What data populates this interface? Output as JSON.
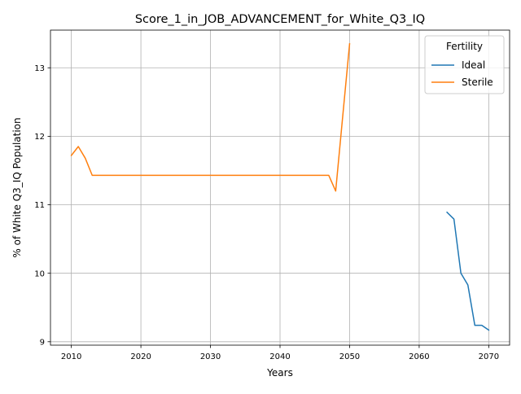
{
  "chart_data": {
    "type": "line",
    "title": "Score_1_in_JOB_ADVANCEMENT_for_White_Q3_IQ",
    "xlabel": "Years",
    "ylabel": "% of White Q3_IQ Population",
    "xlim": [
      2007,
      2073
    ],
    "ylim": [
      8.95,
      13.55
    ],
    "x_ticks": [
      2010,
      2020,
      2030,
      2040,
      2050,
      2060,
      2070
    ],
    "y_ticks": [
      9,
      10,
      11,
      12,
      13
    ],
    "grid": true,
    "legend": {
      "title": "Fertility",
      "placement": "top-right"
    },
    "series": [
      {
        "name": "Ideal",
        "color": "#1f77b4",
        "x": [
          2064,
          2065,
          2066,
          2067,
          2068,
          2069,
          2070
        ],
        "y": [
          10.89,
          10.79,
          10.0,
          9.83,
          9.24,
          9.24,
          9.17
        ]
      },
      {
        "name": "Sterile",
        "color": "#ff7f0e",
        "x": [
          2010,
          2011,
          2012,
          2013,
          2014,
          2015,
          2016,
          2017,
          2018,
          2019,
          2020,
          2021,
          2022,
          2023,
          2024,
          2025,
          2026,
          2027,
          2028,
          2029,
          2030,
          2031,
          2032,
          2033,
          2034,
          2035,
          2036,
          2037,
          2038,
          2039,
          2040,
          2041,
          2042,
          2043,
          2044,
          2045,
          2046,
          2047,
          2048,
          2049,
          2050
        ],
        "y": [
          11.72,
          11.85,
          11.68,
          11.43,
          11.43,
          11.43,
          11.43,
          11.43,
          11.43,
          11.43,
          11.43,
          11.43,
          11.43,
          11.43,
          11.43,
          11.43,
          11.43,
          11.43,
          11.43,
          11.43,
          11.43,
          11.43,
          11.43,
          11.43,
          11.43,
          11.43,
          11.43,
          11.43,
          11.43,
          11.43,
          11.43,
          11.43,
          11.43,
          11.43,
          11.43,
          11.43,
          11.43,
          11.43,
          11.2,
          12.28,
          13.35
        ]
      }
    ]
  }
}
